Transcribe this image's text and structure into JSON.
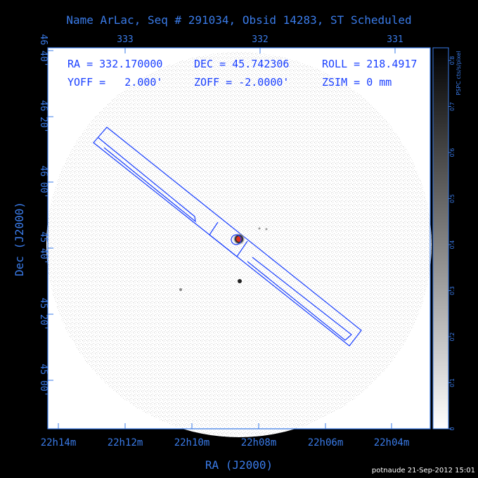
{
  "colors": {
    "axis": "#3a7be8",
    "frame": "#1a40ff",
    "background": "#000000",
    "field": "#ffffff",
    "source": "#e03020"
  },
  "title": "Name ArLac, Seq # 291034, Obsid 14283, ST Scheduled",
  "info": {
    "line1": [
      "RA = 332.170000",
      "DEC = 45.742306",
      "ROLL = 218.4917"
    ],
    "line2": [
      "YOFF =   2.000'",
      "ZOFF = -2.0000'",
      "ZSIM = 0 mm"
    ]
  },
  "footer": "potnaude 21-Sep-2012 15:01",
  "chart_data": {
    "type": "heatmap",
    "title": "Name ArLac, Seq # 291034, Obsid 14283, ST Scheduled",
    "xlabel": "RA (J2000)",
    "ylabel": "Dec (J2000)",
    "x_ticks": [
      "22h14m",
      "22h12m",
      "22h10m",
      "22h08m",
      "22h06m",
      "22h04m"
    ],
    "y_ticks": [
      "45 00'",
      "45 20'",
      "45 40'",
      "46 00'",
      "46 20'",
      "46 40'"
    ],
    "top_ticks": [
      "333",
      "332",
      "331"
    ],
    "colorbar": {
      "label": "PSPC cts/s/pixel",
      "ticks": [
        "0",
        "0.1",
        "0.2",
        "0.3",
        "0.4",
        "0.5",
        "0.6",
        "0.7",
        "0.8"
      ],
      "range": [
        0,
        0.8
      ]
    },
    "target": {
      "name": "ArLac",
      "ra_deg": 332.17,
      "dec_deg": 45.742306
    }
  }
}
